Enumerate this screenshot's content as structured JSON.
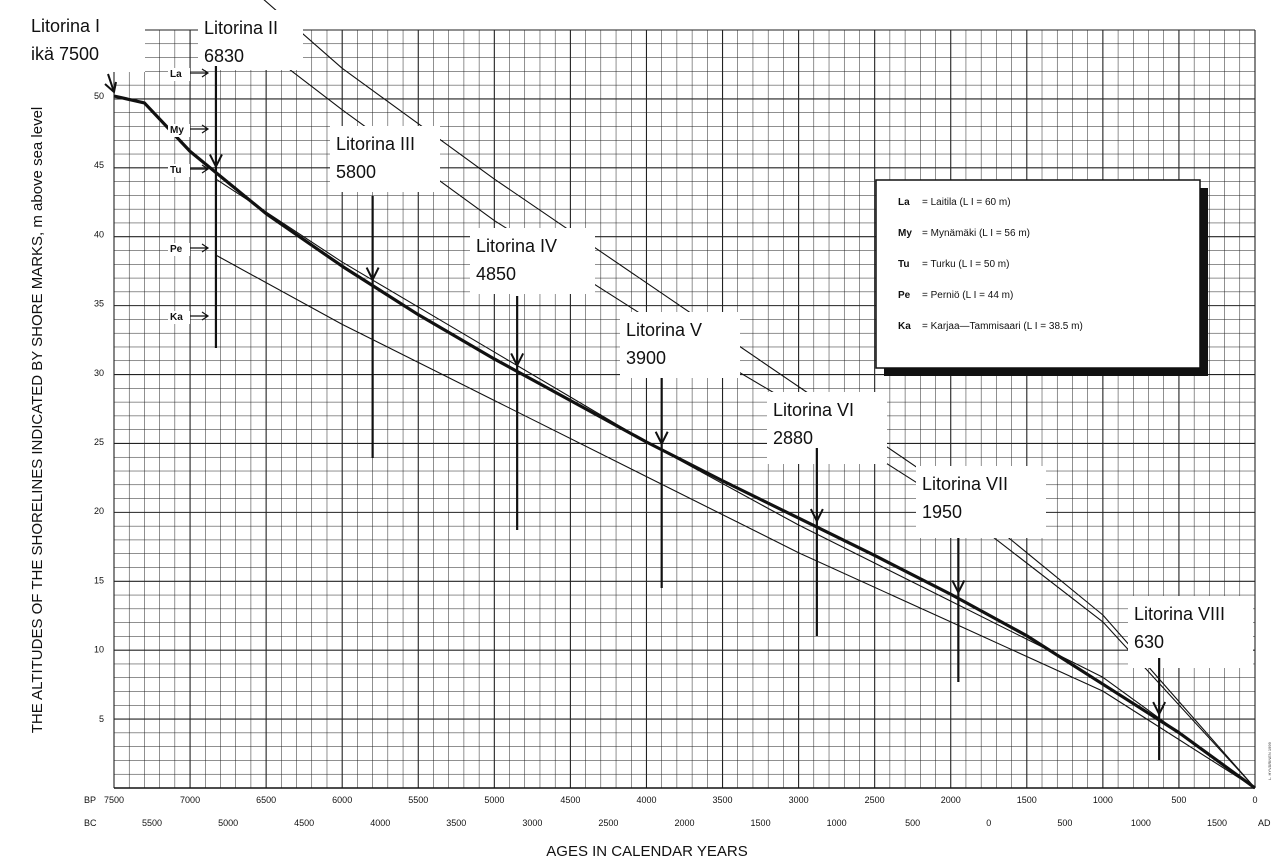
{
  "chart_data": {
    "type": "line",
    "title": "",
    "xlabel": "AGES IN CALENDAR YEARS",
    "ylabel": "THE ALTITUDES OF THE SHORELINES INDICATED BY SHORE MARKS, m above sea level",
    "x_unit": "years BP",
    "xlim": [
      7500,
      0
    ],
    "ylim": [
      0,
      50
    ],
    "grid": true,
    "bp_row_label": "BP",
    "bc_row_label": "BC",
    "ad_label": "AD",
    "bp_ticks": [
      "7500",
      "7000",
      "6500",
      "6000",
      "5500",
      "5000",
      "4500",
      "4000",
      "3500",
      "3000",
      "2500",
      "2000",
      "1500",
      "1000",
      "500",
      "0"
    ],
    "bc_ticks": [
      "5500",
      "5000",
      "4500",
      "4000",
      "3500",
      "3000",
      "2500",
      "2000",
      "1500",
      "1000",
      "500",
      "0",
      "500",
      "1000",
      "1500"
    ],
    "y_ticks": [
      "5",
      "10",
      "15",
      "20",
      "25",
      "30",
      "35",
      "40",
      "45",
      "50"
    ],
    "series": [
      {
        "name": "La",
        "values": [
          [
            6830,
            60
          ],
          [
            6000,
            52
          ],
          [
            5000,
            44
          ],
          [
            4000,
            36.5
          ],
          [
            3000,
            29
          ],
          [
            2000,
            21.5
          ],
          [
            1000,
            12.5
          ],
          [
            0,
            0
          ]
        ]
      },
      {
        "name": "My",
        "values": [
          [
            6830,
            56
          ],
          [
            6000,
            49
          ],
          [
            5000,
            41
          ],
          [
            4000,
            34
          ],
          [
            3000,
            27.5
          ],
          [
            2000,
            20.5
          ],
          [
            1000,
            12
          ],
          [
            0,
            0
          ]
        ]
      },
      {
        "name": "Tu",
        "values": [
          [
            7500,
            50
          ],
          [
            7300,
            49.5
          ],
          [
            7000,
            46
          ],
          [
            6500,
            41.5
          ],
          [
            6000,
            37.7
          ],
          [
            5500,
            34.2
          ],
          [
            5000,
            31
          ],
          [
            4500,
            28
          ],
          [
            4000,
            25
          ],
          [
            3500,
            22.2
          ],
          [
            3000,
            19.5
          ],
          [
            2500,
            16.8
          ],
          [
            2000,
            14
          ],
          [
            1500,
            11
          ],
          [
            1000,
            7.5
          ],
          [
            500,
            4
          ],
          [
            0,
            0
          ]
        ]
      },
      {
        "name": "Pe",
        "values": [
          [
            6830,
            44
          ],
          [
            6000,
            38
          ],
          [
            5000,
            31.5
          ],
          [
            4000,
            25
          ],
          [
            3000,
            19
          ],
          [
            2000,
            13.5
          ],
          [
            1000,
            8
          ],
          [
            0,
            0
          ]
        ]
      },
      {
        "name": "Ka",
        "values": [
          [
            6830,
            38.5
          ],
          [
            6000,
            33.5
          ],
          [
            5000,
            28
          ],
          [
            4000,
            22.5
          ],
          [
            3000,
            17
          ],
          [
            2000,
            12
          ],
          [
            1000,
            7
          ],
          [
            0,
            0
          ]
        ]
      }
    ],
    "legend_position": "top-right",
    "legend": [
      {
        "abbr": "La",
        "text": "= Laitila (L I = 60 m)"
      },
      {
        "abbr": "My",
        "text": "= Mynämäki (L I = 56 m)"
      },
      {
        "abbr": "Tu",
        "text": "= Turku (L I = 50 m)"
      },
      {
        "abbr": "Pe",
        "text": "= Perniö (L I = 44 m)"
      },
      {
        "abbr": "Ka",
        "text": "= Karjaa—Tammisaari (L I = 38.5 m)"
      }
    ],
    "periods": [
      {
        "name": "Litorina I",
        "age_text": "ikä 7500",
        "age": 7500
      },
      {
        "name": "Litorina II",
        "age_text": "6830",
        "age": 6830
      },
      {
        "name": "Litorina III",
        "age_text": "5800",
        "age": 5800
      },
      {
        "name": "Litorina IV",
        "age_text": "4850",
        "age": 4850
      },
      {
        "name": "Litorina V",
        "age_text": "3900",
        "age": 3900
      },
      {
        "name": "Litorina VI",
        "age_text": "2880",
        "age": 2880
      },
      {
        "name": "Litorina VII",
        "age_text": "1950",
        "age": 1950
      },
      {
        "name": "Litorina VIII",
        "age_text": "630",
        "age": 630
      }
    ],
    "site_markers": [
      {
        "abbr": "La",
        "y": 60
      },
      {
        "abbr": "My",
        "y": 56
      },
      {
        "abbr": "Tu",
        "y": 50
      },
      {
        "abbr": "Pe",
        "y": 44
      },
      {
        "abbr": "Ka",
        "y": 38.5
      }
    ],
    "edge_note": "L. HYVÄRINEN 1999"
  }
}
